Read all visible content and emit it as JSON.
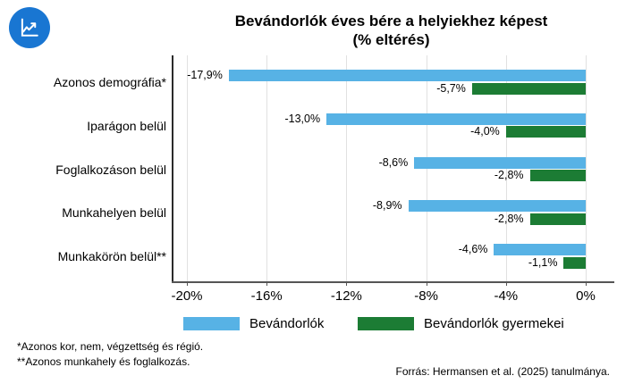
{
  "logo": {
    "icon": "line-chart-icon",
    "circle_color": "#1976D2",
    "glyph_color": "#ffffff"
  },
  "title": {
    "line1": "Bevándorlók éves bére a helyiekhez képest",
    "line2": "(% eltérés)"
  },
  "chart_data": {
    "type": "bar",
    "orientation": "horizontal",
    "title": "Bevándorlók éves bére a helyiekhez képest (% eltérés)",
    "categories": [
      "Azonos demográfia*",
      "Iparágon belül",
      "Foglalkozáson belül",
      "Munkahelyen belül",
      "Munkakörön belül**"
    ],
    "series": [
      {
        "name": "Bevándorlók",
        "color": "#57B2E5",
        "values": [
          -17.9,
          -13.0,
          -8.6,
          -8.9,
          -4.6
        ],
        "labels": [
          "-17,9%",
          "-13,0%",
          "-8,6%",
          "-8,9%",
          "-4,6%"
        ]
      },
      {
        "name": "Bevándorlók gyermekei",
        "color": "#1C7C34",
        "values": [
          -5.7,
          -4.0,
          -2.8,
          -2.8,
          -1.1
        ],
        "labels": [
          "-5,7%",
          "-4,0%",
          "-2,8%",
          "-2,8%",
          "-1,1%"
        ]
      }
    ],
    "x_ticks": [
      -20,
      -16,
      -12,
      -8,
      -4,
      0
    ],
    "x_tick_labels": [
      "-20%",
      "-16%",
      "-12%",
      "-8%",
      "-4%",
      "0%"
    ],
    "xlim": [
      -20.8,
      1.4
    ],
    "grid": true,
    "legend_position": "bottom"
  },
  "legend": {
    "items": [
      {
        "label": "Bevándorlók",
        "color": "#57B2E5"
      },
      {
        "label": "Bevándorlók gyermekei",
        "color": "#1C7C34"
      }
    ]
  },
  "footnotes": [
    "*Azonos kor, nem, végzettség és régió.",
    "**Azonos munkahely és foglalkozás."
  ],
  "source": "Forrás: Hermansen et al. (2025) tanulmánya."
}
